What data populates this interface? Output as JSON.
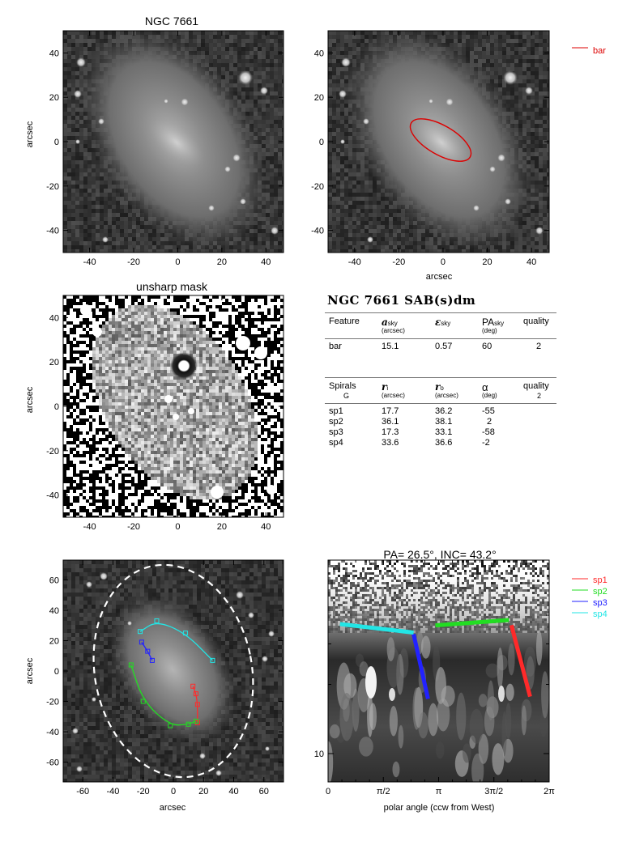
{
  "panel_titles": {
    "image": "NGC 7661",
    "unsharp": "unsharp mask",
    "polar": "PA=  26.5°, INC=  43.2°"
  },
  "axis_labels": {
    "arcsec": "arcsec",
    "polar_x": "polar angle (ccw from West)"
  },
  "ticks": {
    "pm40": [
      "-40",
      "-20",
      "0",
      "20",
      "40"
    ],
    "pm60": [
      "-60",
      "-40",
      "-20",
      "0",
      "20",
      "40",
      "60"
    ],
    "polar_x": [
      "0",
      "π/2",
      "π",
      "3π/2",
      "2π"
    ],
    "polar_y": [
      "10"
    ]
  },
  "legends": {
    "bar": {
      "label": "bar",
      "color": "#dd0000"
    },
    "spirals": [
      {
        "label": "sp1",
        "color": "#ff2a2a"
      },
      {
        "label": "sp2",
        "color": "#22dd22"
      },
      {
        "label": "sp3",
        "color": "#2222ff"
      },
      {
        "label": "sp4",
        "color": "#22e6e6"
      }
    ]
  },
  "table": {
    "title": "NGC 7661  SAB(s)dm",
    "bar_header": {
      "feature": "Feature",
      "a_sym": "a",
      "a_sub": "sky",
      "a_unit": "(arcsec)",
      "e_sym": "ε",
      "e_sub": "sky",
      "pa_sym": "PA",
      "pa_sub": "sky",
      "pa_unit": "(deg)",
      "quality": "quality"
    },
    "bar_row": {
      "feature": "bar",
      "a": "15.1",
      "e": "0.57",
      "pa": "60",
      "quality": "2"
    },
    "spiral_header": {
      "spirals": "Spirals",
      "g": "G",
      "ri_sym": "r",
      "ri_sub": "i",
      "ri_unit": "(arcsec)",
      "ro_sym": "r",
      "ro_sub": "o",
      "ro_unit": "(arcsec)",
      "alpha_sym": "α",
      "alpha_unit": "(deg)",
      "quality": "quality",
      "quality_val": "2"
    },
    "spiral_rows": [
      {
        "name": "sp1",
        "ri": "17.7",
        "ro": "36.2",
        "alpha": "-55"
      },
      {
        "name": "sp2",
        "ri": "36.1",
        "ro": "38.1",
        "alpha": "2"
      },
      {
        "name": "sp3",
        "ri": "17.3",
        "ro": "33.1",
        "alpha": "-58"
      },
      {
        "name": "sp4",
        "ri": "33.6",
        "ro": "36.6",
        "alpha": "-2"
      }
    ]
  },
  "chart_data": [
    {
      "type": "image",
      "title": "NGC 7661",
      "ylabel": "arcsec",
      "xlim": [
        -52,
        48
      ],
      "ylim": [
        -50,
        50
      ]
    },
    {
      "type": "image",
      "xlabel": "arcsec",
      "xlim": [
        -52,
        48
      ],
      "ylim": [
        -50,
        50
      ],
      "overlay": {
        "shape": "ellipse",
        "name": "bar",
        "a_arcsec": 15.1,
        "ellipticity": 0.57,
        "pa_deg": 60,
        "color": "#dd0000"
      }
    },
    {
      "type": "image",
      "title": "unsharp mask",
      "ylabel": "arcsec",
      "xlim": [
        -52,
        48
      ],
      "ylim": [
        -50,
        50
      ]
    },
    {
      "type": "image",
      "xlabel": "arcsec",
      "ylabel": "arcsec",
      "xlim": [
        -73,
        73
      ],
      "ylim": [
        -73,
        73
      ],
      "outer_ellipse": {
        "semi_major": 71,
        "semi_minor": 52,
        "tilt_deg": 26.5,
        "style": "dashed",
        "color": "#ffffff"
      },
      "spiral_arcs": [
        {
          "name": "sp1",
          "color": "#ff2a2a",
          "points": [
            [
              13,
              -10
            ],
            [
              15,
              -15
            ],
            [
              16,
              -22
            ],
            [
              16,
              -34
            ]
          ]
        },
        {
          "name": "sp2",
          "color": "#22dd22",
          "points": [
            [
              -28,
              4
            ],
            [
              -20,
              -20
            ],
            [
              -2,
              -36
            ],
            [
              10,
              -35
            ],
            [
              15,
              -33
            ]
          ]
        },
        {
          "name": "sp3",
          "color": "#2222ff",
          "points": [
            [
              -21,
              19
            ],
            [
              -17,
              13
            ],
            [
              -14,
              7
            ]
          ]
        },
        {
          "name": "sp4",
          "color": "#22e6e6",
          "points": [
            [
              -22,
              26
            ],
            [
              -11,
              33
            ],
            [
              8,
              25
            ],
            [
              26,
              7
            ]
          ]
        }
      ]
    },
    {
      "type": "line",
      "title": "PA=  26.5°, INC=  43.2°",
      "xlabel": "polar angle (ccw from West)",
      "xlim": [
        0,
        6.2832
      ],
      "y_scale": "log",
      "series": [
        {
          "name": "sp1",
          "color": "#ff2a2a",
          "x": [
            5.21,
            5.74
          ],
          "y": [
            36.2,
            17.7
          ]
        },
        {
          "name": "sp2",
          "color": "#22dd22",
          "x": [
            3.05,
            5.14
          ],
          "y": [
            36.1,
            38.1
          ]
        },
        {
          "name": "sp3",
          "color": "#2222ff",
          "x": [
            2.43,
            2.84
          ],
          "y": [
            33.1,
            17.3
          ]
        },
        {
          "name": "sp4",
          "color": "#22e6e6",
          "x": [
            0.34,
            2.43
          ],
          "y": [
            36.6,
            33.6
          ]
        }
      ]
    }
  ]
}
